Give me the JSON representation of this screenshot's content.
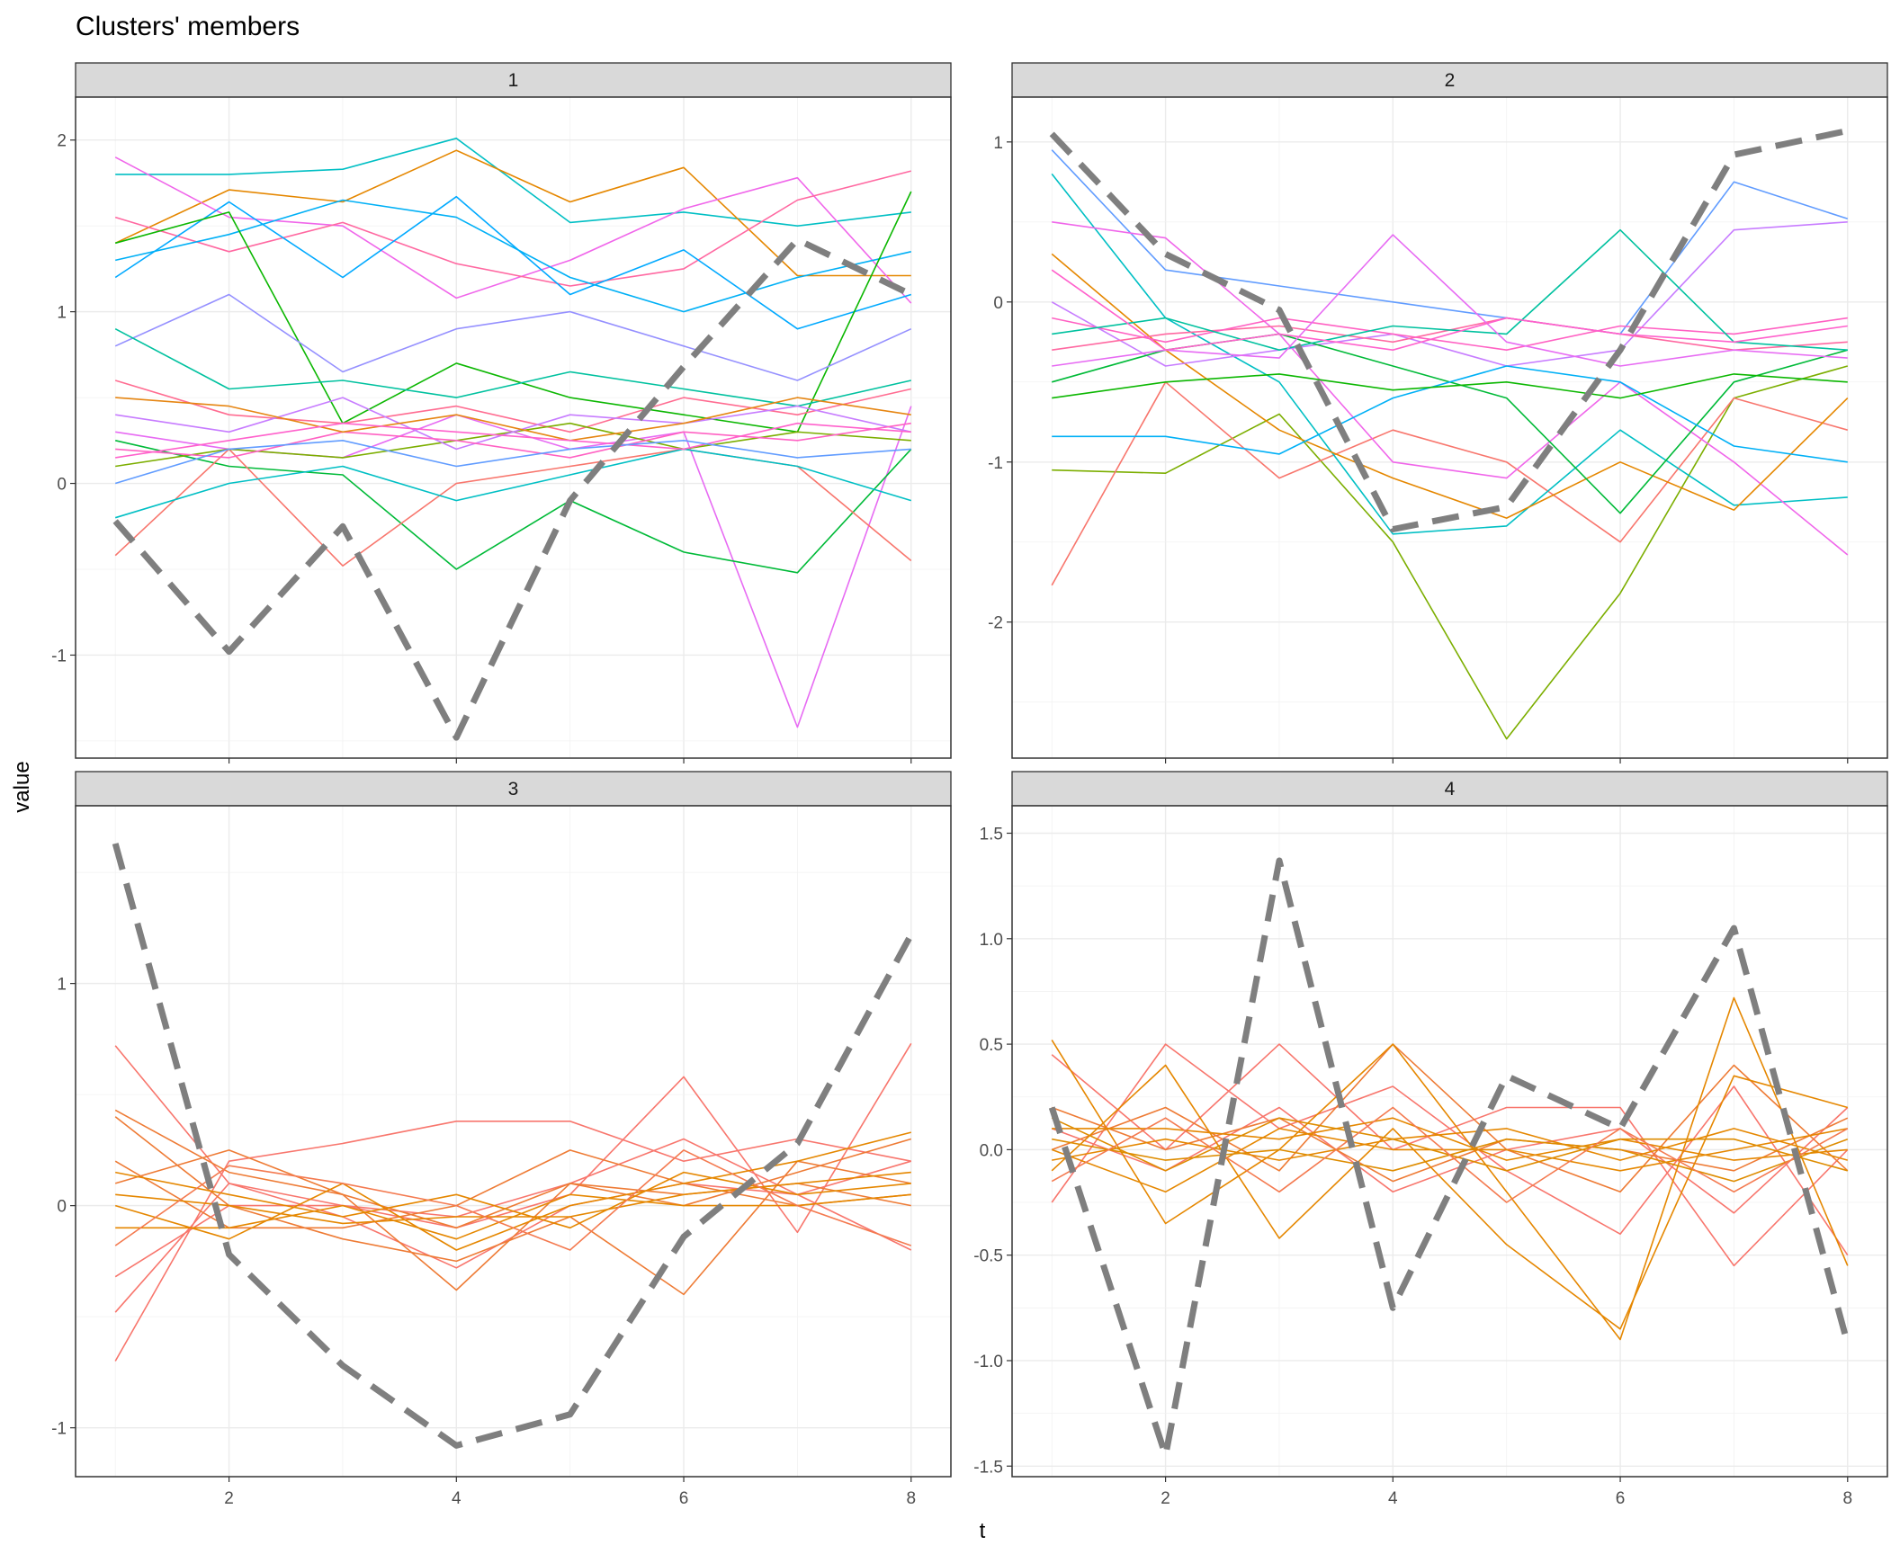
{
  "chart_data": {
    "type": "line",
    "title": "Clusters' members",
    "xlabel": "t",
    "ylabel": "value",
    "x": [
      1,
      2,
      3,
      4,
      5,
      6,
      7,
      8
    ],
    "x_ticks": [
      2,
      4,
      6,
      8
    ],
    "grid": true,
    "legend": "none",
    "centroid_color": "#7f7f7f",
    "panels": [
      {
        "strip": "1",
        "ylim": [
          -1.6,
          2.25
        ],
        "y_ticks": [
          -1,
          0,
          1,
          2
        ],
        "y_tick_labels": [
          "-1",
          "0",
          "1",
          "2"
        ],
        "centroid": [
          -0.22,
          -0.98,
          -0.25,
          -1.48,
          -0.1,
          0.68,
          1.42,
          1.1
        ],
        "series": [
          {
            "color": "#00BFC4",
            "values": [
              1.8,
              1.8,
              1.83,
              2.01,
              1.52,
              1.58,
              1.5,
              1.58
            ]
          },
          {
            "color": "#E58700",
            "values": [
              1.4,
              1.71,
              1.64,
              1.94,
              1.64,
              1.84,
              1.21,
              1.21
            ]
          },
          {
            "color": "#F066EA",
            "values": [
              1.9,
              1.55,
              1.5,
              1.08,
              1.3,
              1.6,
              1.78,
              1.05
            ]
          },
          {
            "color": "#FF68A1",
            "values": [
              1.55,
              1.35,
              1.52,
              1.28,
              1.15,
              1.25,
              1.65,
              1.82
            ]
          },
          {
            "color": "#00A9FF",
            "values": [
              1.2,
              1.64,
              1.2,
              1.67,
              1.1,
              1.36,
              0.9,
              1.1
            ]
          },
          {
            "color": "#00B0F6",
            "values": [
              1.3,
              1.45,
              1.65,
              1.55,
              1.2,
              1.0,
              1.2,
              1.35
            ]
          },
          {
            "color": "#0CB702",
            "values": [
              1.4,
              1.58,
              0.35,
              0.7,
              0.5,
              0.4,
              0.3,
              1.7
            ]
          },
          {
            "color": "#E76BF3",
            "values": [
              0.3,
              0.2,
              0.15,
              0.4,
              0.2,
              0.3,
              -1.42,
              0.45
            ]
          },
          {
            "color": "#00BA38",
            "values": [
              0.25,
              0.1,
              0.05,
              -0.5,
              -0.1,
              -0.4,
              -0.52,
              0.2
            ]
          },
          {
            "color": "#F8766D",
            "values": [
              -0.42,
              0.2,
              -0.48,
              0.0,
              0.1,
              0.2,
              0.1,
              -0.45
            ]
          },
          {
            "color": "#9590FF",
            "values": [
              0.8,
              1.1,
              0.65,
              0.9,
              1.0,
              0.8,
              0.6,
              0.9
            ]
          },
          {
            "color": "#00C19F",
            "values": [
              0.9,
              0.55,
              0.6,
              0.5,
              0.65,
              0.55,
              0.45,
              0.6
            ]
          },
          {
            "color": "#FF6C91",
            "values": [
              0.6,
              0.4,
              0.35,
              0.45,
              0.3,
              0.5,
              0.4,
              0.55
            ]
          },
          {
            "color": "#7CAE00",
            "values": [
              0.1,
              0.2,
              0.15,
              0.25,
              0.35,
              0.2,
              0.3,
              0.25
            ]
          },
          {
            "color": "#C77CFF",
            "values": [
              0.4,
              0.3,
              0.5,
              0.2,
              0.4,
              0.35,
              0.45,
              0.3
            ]
          },
          {
            "color": "#00BFC4",
            "values": [
              -0.2,
              0.0,
              0.1,
              -0.1,
              0.05,
              0.2,
              0.1,
              -0.1
            ]
          },
          {
            "color": "#FF61C3",
            "values": [
              0.2,
              0.15,
              0.3,
              0.25,
              0.15,
              0.3,
              0.25,
              0.35
            ]
          },
          {
            "color": "#E68613",
            "values": [
              0.5,
              0.45,
              0.3,
              0.4,
              0.25,
              0.35,
              0.5,
              0.4
            ]
          },
          {
            "color": "#FF61CC",
            "values": [
              0.15,
              0.25,
              0.35,
              0.3,
              0.25,
              0.2,
              0.35,
              0.3
            ]
          },
          {
            "color": "#619CFF",
            "values": [
              0.0,
              0.2,
              0.25,
              0.1,
              0.2,
              0.25,
              0.15,
              0.2
            ]
          }
        ]
      },
      {
        "strip": "2",
        "ylim": [
          -2.85,
          1.28
        ],
        "y_ticks": [
          -2,
          -1,
          0,
          1
        ],
        "y_tick_labels": [
          "-2",
          "-1",
          "0",
          "1"
        ],
        "centroid": [
          1.05,
          0.3,
          -0.05,
          -1.42,
          -1.28,
          -0.3,
          0.92,
          1.07
        ],
        "series": [
          {
            "color": "#7CAE00",
            "values": [
              -1.05,
              -1.07,
              -0.7,
              -1.5,
              -2.73,
              -1.82,
              -0.6,
              -0.4
            ]
          },
          {
            "color": "#F8766D",
            "values": [
              -1.77,
              -0.5,
              -1.1,
              -0.8,
              -1.0,
              -1.5,
              -0.6,
              -0.8
            ]
          },
          {
            "color": "#619CFF",
            "values": [
              0.95,
              0.2,
              0.1,
              0.0,
              -0.1,
              -0.2,
              0.75,
              0.52
            ]
          },
          {
            "color": "#00BFC4",
            "values": [
              0.8,
              -0.1,
              -0.5,
              -1.45,
              -1.4,
              -0.8,
              -1.27,
              -1.22
            ]
          },
          {
            "color": "#F066EA",
            "values": [
              0.5,
              0.4,
              -0.2,
              -1.0,
              -1.1,
              -0.5,
              -1.0,
              -1.58
            ]
          },
          {
            "color": "#E58700",
            "values": [
              0.3,
              -0.3,
              -0.8,
              -1.1,
              -1.35,
              -1.0,
              -1.3,
              -0.6
            ]
          },
          {
            "color": "#C77CFF",
            "values": [
              0.0,
              -0.4,
              -0.3,
              -0.2,
              -0.4,
              -0.3,
              0.45,
              0.5
            ]
          },
          {
            "color": "#00BA38",
            "values": [
              -0.5,
              -0.3,
              -0.2,
              -0.4,
              -0.6,
              -1.32,
              -0.5,
              -0.3
            ]
          },
          {
            "color": "#00B0F6",
            "values": [
              -0.84,
              -0.84,
              -0.95,
              -0.6,
              -0.4,
              -0.5,
              -0.9,
              -1.0
            ]
          },
          {
            "color": "#FF68A1",
            "values": [
              -0.3,
              -0.2,
              -0.15,
              -0.25,
              -0.1,
              -0.2,
              -0.3,
              -0.25
            ]
          },
          {
            "color": "#FF61C3",
            "values": [
              -0.1,
              -0.25,
              -0.1,
              -0.2,
              -0.3,
              -0.15,
              -0.2,
              -0.1
            ]
          },
          {
            "color": "#00C19F",
            "values": [
              -0.2,
              -0.1,
              -0.3,
              -0.15,
              -0.2,
              0.45,
              -0.25,
              -0.3
            ]
          },
          {
            "color": "#E76BF3",
            "values": [
              -0.4,
              -0.3,
              -0.35,
              0.42,
              -0.25,
              -0.4,
              -0.3,
              -0.35
            ]
          },
          {
            "color": "#FF61CC",
            "values": [
              0.2,
              -0.3,
              -0.2,
              -0.3,
              -0.1,
              -0.2,
              -0.25,
              -0.15
            ]
          },
          {
            "color": "#0CB702",
            "values": [
              -0.6,
              -0.5,
              -0.45,
              -0.55,
              -0.5,
              -0.6,
              -0.45,
              -0.5
            ]
          }
        ]
      },
      {
        "strip": "3",
        "ylim": [
          -1.22,
          1.8
        ],
        "y_ticks": [
          -1,
          0,
          1
        ],
        "y_tick_labels": [
          "-1",
          "0",
          "1"
        ],
        "centroid": [
          1.63,
          -0.22,
          -0.72,
          -1.08,
          -0.94,
          -0.14,
          0.28,
          1.22
        ],
        "series": [
          {
            "color": "#F8766D",
            "values": [
              0.72,
              0.1,
              0.0,
              -0.1,
              0.05,
              0.58,
              -0.12,
              0.73
            ]
          },
          {
            "color": "#F8766D",
            "values": [
              -0.7,
              0.2,
              0.28,
              0.38,
              0.38,
              0.2,
              0.3,
              0.2
            ]
          },
          {
            "color": "#F8766D",
            "values": [
              -0.48,
              0.1,
              -0.05,
              -0.28,
              0.0,
              0.1,
              0.05,
              -0.2
            ]
          },
          {
            "color": "#F8766D",
            "values": [
              -0.32,
              0.0,
              0.0,
              -0.05,
              0.1,
              0.3,
              0.05,
              0.2
            ]
          },
          {
            "color": "#EE7B35",
            "values": [
              0.43,
              0.15,
              0.05,
              -0.38,
              0.1,
              0.0,
              0.15,
              0.3
            ]
          },
          {
            "color": "#EE7B35",
            "values": [
              0.4,
              0.0,
              -0.15,
              -0.25,
              -0.05,
              -0.4,
              0.2,
              0.1
            ]
          },
          {
            "color": "#EE7B35",
            "values": [
              0.2,
              -0.1,
              -0.1,
              0.0,
              0.25,
              0.1,
              0.0,
              0.05
            ]
          },
          {
            "color": "#EE7B35",
            "values": [
              0.1,
              0.25,
              0.05,
              -0.1,
              0.1,
              0.05,
              0.1,
              0.0
            ]
          },
          {
            "color": "#E58700",
            "values": [
              0.0,
              -0.15,
              0.1,
              -0.2,
              0.0,
              0.1,
              0.2,
              0.33
            ]
          },
          {
            "color": "#E58700",
            "values": [
              0.15,
              0.05,
              -0.05,
              0.05,
              -0.1,
              0.15,
              0.05,
              0.1
            ]
          },
          {
            "color": "#E58700",
            "values": [
              -0.1,
              -0.1,
              0.0,
              -0.15,
              0.05,
              0.0,
              0.0,
              0.05
            ]
          },
          {
            "color": "#E58700",
            "values": [
              0.05,
              0.0,
              -0.08,
              -0.05,
              -0.05,
              0.05,
              0.1,
              0.15
            ]
          },
          {
            "color": "#F47A50",
            "values": [
              -0.18,
              0.18,
              0.1,
              0.0,
              -0.2,
              0.25,
              0.0,
              -0.18
            ]
          }
        ]
      },
      {
        "strip": "4",
        "ylim": [
          -1.55,
          1.63
        ],
        "y_ticks": [
          -1.5,
          -1.0,
          -0.5,
          0.0,
          0.5,
          1.0,
          1.5
        ],
        "y_tick_labels": [
          "-1.5",
          "-1.0",
          "-0.5",
          "0.0",
          "0.5",
          "1.0",
          "1.5"
        ],
        "centroid": [
          0.2,
          -1.45,
          1.37,
          -0.75,
          0.35,
          0.1,
          1.05,
          -0.92
        ],
        "series": [
          {
            "color": "#F8766D",
            "values": [
              0.45,
              0.0,
              0.5,
              0.0,
              0.2,
              0.2,
              -0.55,
              0.0
            ]
          },
          {
            "color": "#F8766D",
            "values": [
              -0.25,
              0.5,
              0.1,
              0.3,
              -0.1,
              -0.4,
              0.3,
              -0.5
            ]
          },
          {
            "color": "#F8766D",
            "values": [
              0.1,
              -0.1,
              0.2,
              -0.2,
              0.0,
              0.1,
              -0.3,
              0.2
            ]
          },
          {
            "color": "#EE7B35",
            "values": [
              0.0,
              0.2,
              -0.1,
              0.5,
              0.0,
              -0.2,
              0.4,
              -0.1
            ]
          },
          {
            "color": "#EE7B35",
            "values": [
              0.2,
              0.0,
              0.15,
              -0.15,
              0.05,
              0.0,
              -0.1,
              0.15
            ]
          },
          {
            "color": "#E58700",
            "values": [
              0.52,
              -0.35,
              0.0,
              0.5,
              -0.2,
              -0.9,
              0.72,
              -0.55
            ]
          },
          {
            "color": "#E58700",
            "values": [
              -0.1,
              0.4,
              -0.42,
              0.1,
              -0.45,
              -0.85,
              0.35,
              0.2
            ]
          },
          {
            "color": "#E58700",
            "values": [
              0.0,
              -0.2,
              0.1,
              0.0,
              0.0,
              -0.1,
              0.0,
              0.1
            ]
          },
          {
            "color": "#E58700",
            "values": [
              0.1,
              0.1,
              0.05,
              0.15,
              -0.05,
              0.05,
              -0.05,
              0.0
            ]
          },
          {
            "color": "#E58700",
            "values": [
              -0.05,
              0.05,
              -0.05,
              0.05,
              0.1,
              -0.05,
              0.1,
              -0.05
            ]
          },
          {
            "color": "#DE8C00",
            "values": [
              0.05,
              -0.05,
              0.0,
              -0.1,
              0.05,
              0.0,
              -0.15,
              0.05
            ]
          },
          {
            "color": "#DE8C00",
            "values": [
              0.15,
              -0.1,
              0.15,
              0.05,
              -0.1,
              0.05,
              0.05,
              -0.1
            ]
          },
          {
            "color": "#F47A50",
            "values": [
              -0.15,
              0.15,
              -0.2,
              0.2,
              -0.25,
              0.1,
              -0.2,
              0.1
            ]
          }
        ]
      }
    ]
  }
}
